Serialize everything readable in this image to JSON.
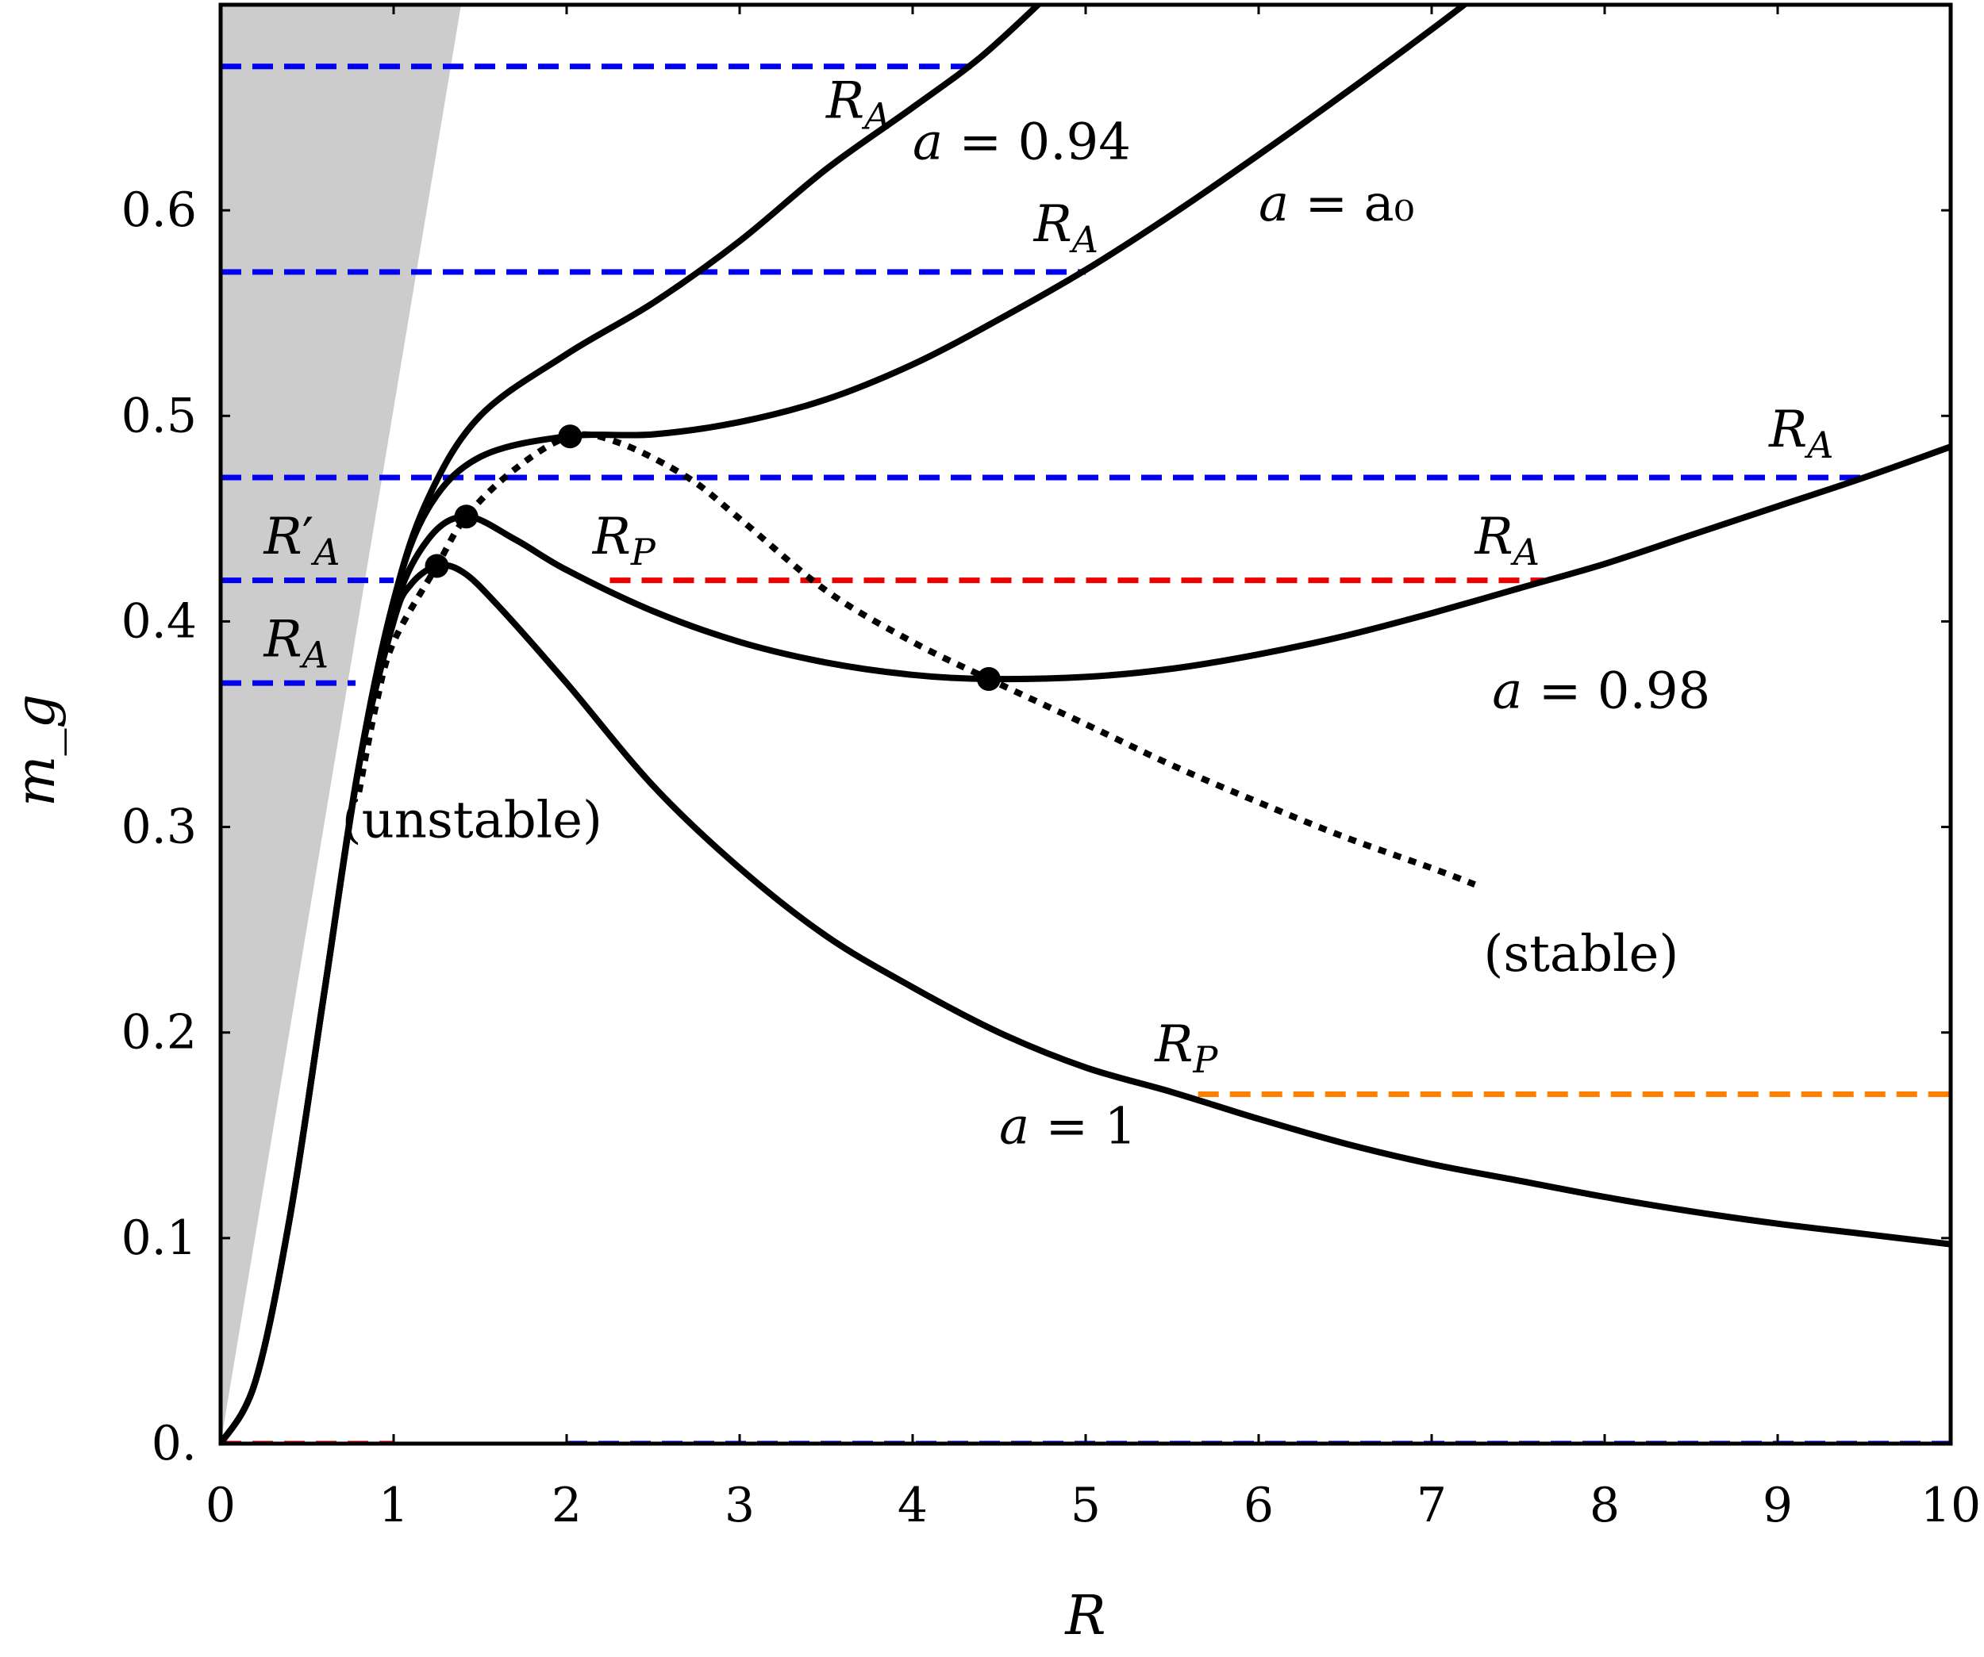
{
  "chart_data": {
    "type": "line",
    "xlabel": "R",
    "ylabel": "m_g",
    "xlim": [
      0,
      10
    ],
    "ylim": [
      0,
      0.7
    ],
    "x_ticks": [
      "0",
      "1",
      "2",
      "3",
      "4",
      "5",
      "6",
      "7",
      "8",
      "9",
      "10"
    ],
    "y_ticks": [
      "0.",
      "0.1",
      "0.2",
      "0.3",
      "0.4",
      "0.5",
      "0.6"
    ],
    "grid": false,
    "shaded_region": {
      "color": "#cccccc",
      "x_at_top": [
        0,
        1.39
      ]
    },
    "series": [
      {
        "name": "a = 0.94",
        "points": [
          [
            0,
            0
          ],
          [
            0.2,
            0.03
          ],
          [
            0.4,
            0.11
          ],
          [
            0.6,
            0.22
          ],
          [
            0.8,
            0.33
          ],
          [
            1,
            0.41
          ],
          [
            1.2,
            0.46
          ],
          [
            1.5,
            0.5
          ],
          [
            2,
            0.53
          ],
          [
            2.5,
            0.555
          ],
          [
            3,
            0.585
          ],
          [
            3.5,
            0.62
          ],
          [
            4,
            0.65
          ],
          [
            4.4,
            0.675
          ],
          [
            4.8,
            0.706
          ]
        ]
      },
      {
        "name": "a = a₀",
        "points": [
          [
            0,
            0
          ],
          [
            0.2,
            0.03
          ],
          [
            0.4,
            0.11
          ],
          [
            0.6,
            0.22
          ],
          [
            0.8,
            0.33
          ],
          [
            1,
            0.41
          ],
          [
            1.2,
            0.455
          ],
          [
            1.5,
            0.48
          ],
          [
            2,
            0.49
          ],
          [
            2.5,
            0.491
          ],
          [
            3,
            0.497
          ],
          [
            3.5,
            0.508
          ],
          [
            4,
            0.525
          ],
          [
            4.5,
            0.547
          ],
          [
            5,
            0.571
          ],
          [
            5.5,
            0.598
          ],
          [
            6,
            0.627
          ],
          [
            6.5,
            0.657
          ],
          [
            7,
            0.688
          ],
          [
            7.25,
            0.704
          ]
        ]
      },
      {
        "name": "a = 0.98",
        "points": [
          [
            0,
            0
          ],
          [
            0.2,
            0.03
          ],
          [
            0.4,
            0.11
          ],
          [
            0.6,
            0.22
          ],
          [
            0.8,
            0.33
          ],
          [
            1,
            0.405
          ],
          [
            1.2,
            0.44
          ],
          [
            1.42,
            0.451
          ],
          [
            1.7,
            0.44
          ],
          [
            2,
            0.425
          ],
          [
            2.5,
            0.405
          ],
          [
            3,
            0.39
          ],
          [
            3.5,
            0.38
          ],
          [
            4,
            0.374
          ],
          [
            4.44,
            0.372
          ],
          [
            5,
            0.373
          ],
          [
            5.5,
            0.377
          ],
          [
            6,
            0.384
          ],
          [
            6.5,
            0.393
          ],
          [
            7,
            0.404
          ],
          [
            7.5,
            0.416
          ],
          [
            8,
            0.428
          ],
          [
            8.5,
            0.442
          ],
          [
            9,
            0.456
          ],
          [
            9.5,
            0.47
          ],
          [
            10,
            0.485
          ]
        ]
      },
      {
        "name": "a = 1",
        "points": [
          [
            0,
            0
          ],
          [
            0.2,
            0.03
          ],
          [
            0.4,
            0.11
          ],
          [
            0.6,
            0.22
          ],
          [
            0.8,
            0.33
          ],
          [
            1,
            0.4
          ],
          [
            1.1,
            0.418
          ],
          [
            1.25,
            0.427
          ],
          [
            1.4,
            0.424
          ],
          [
            1.6,
            0.408
          ],
          [
            2,
            0.37
          ],
          [
            2.5,
            0.32
          ],
          [
            3,
            0.28
          ],
          [
            3.5,
            0.247
          ],
          [
            4,
            0.222
          ],
          [
            4.5,
            0.2
          ],
          [
            5,
            0.183
          ],
          [
            5.5,
            0.171
          ],
          [
            6,
            0.158
          ],
          [
            6.5,
            0.146
          ],
          [
            7,
            0.136
          ],
          [
            7.5,
            0.128
          ],
          [
            8,
            0.12
          ],
          [
            8.5,
            0.113
          ],
          [
            9,
            0.107
          ],
          [
            9.5,
            0.102
          ],
          [
            10,
            0.097
          ]
        ]
      }
    ],
    "stability_curve": {
      "style": "dotted",
      "points": [
        [
          0.8,
          0.317
        ],
        [
          0.9,
          0.36
        ],
        [
          1.0,
          0.39
        ],
        [
          1.25,
          0.427
        ],
        [
          1.42,
          0.451
        ],
        [
          1.7,
          0.474
        ],
        [
          2.02,
          0.49
        ],
        [
          2.3,
          0.487
        ],
        [
          2.7,
          0.47
        ],
        [
          3,
          0.45
        ],
        [
          3.5,
          0.415
        ],
        [
          4,
          0.39
        ],
        [
          4.44,
          0.372
        ],
        [
          5,
          0.35
        ],
        [
          5.5,
          0.33
        ],
        [
          6,
          0.312
        ],
        [
          6.5,
          0.295
        ],
        [
          7,
          0.28
        ],
        [
          7.25,
          0.272
        ]
      ]
    },
    "critical_points": [
      [
        1.25,
        0.427
      ],
      [
        1.42,
        0.451
      ],
      [
        2.02,
        0.49
      ],
      [
        4.44,
        0.372
      ]
    ],
    "horizontal_segments": [
      {
        "color": "#0000ee",
        "y": 0.67,
        "x": [
          0,
          4.4
        ]
      },
      {
        "color": "#0000ee",
        "y": 0.57,
        "x": [
          0,
          5.0
        ]
      },
      {
        "color": "#0000ee",
        "y": 0.47,
        "x": [
          0,
          9.5
        ]
      },
      {
        "color": "#0000ee",
        "y": 0.42,
        "x": [
          0,
          1.0
        ]
      },
      {
        "color": "#0000ee",
        "y": 0.37,
        "x": [
          0,
          0.78
        ]
      },
      {
        "color": "#ee0000",
        "y": 0.42,
        "x": [
          2.25,
          7.65
        ]
      },
      {
        "color": "#ff8000",
        "y": 0.17,
        "x": [
          5.65,
          10
        ]
      },
      {
        "color": "#ee0000",
        "y": 0.0,
        "x": [
          0,
          1.0
        ]
      },
      {
        "color": "#0000ee",
        "y": 0.0,
        "x": [
          2.0,
          10
        ]
      }
    ],
    "annotations": [
      {
        "text": "R_A",
        "x": 3.5,
        "y": 0.645
      },
      {
        "text": "a = 0.94",
        "x": 4.0,
        "y": 0.625
      },
      {
        "text": "R_A",
        "x": 4.7,
        "y": 0.585
      },
      {
        "text": "a = a₀",
        "x": 6.0,
        "y": 0.595
      },
      {
        "text": "R_A",
        "x": 8.95,
        "y": 0.485
      },
      {
        "text": "R′_A",
        "x": 0.25,
        "y": 0.433
      },
      {
        "text": "R_P",
        "x": 2.15,
        "y": 0.433
      },
      {
        "text": "R_A",
        "x": 7.25,
        "y": 0.433
      },
      {
        "text": "R_A",
        "x": 0.25,
        "y": 0.383
      },
      {
        "text": "a = 0.98",
        "x": 7.35,
        "y": 0.358
      },
      {
        "text": "(unstable)",
        "x": 0.7,
        "y": 0.295
      },
      {
        "text": "(stable)",
        "x": 7.3,
        "y": 0.23
      },
      {
        "text": "R_P",
        "x": 5.4,
        "y": 0.186
      },
      {
        "text": "a = 1",
        "x": 4.5,
        "y": 0.146
      }
    ]
  }
}
